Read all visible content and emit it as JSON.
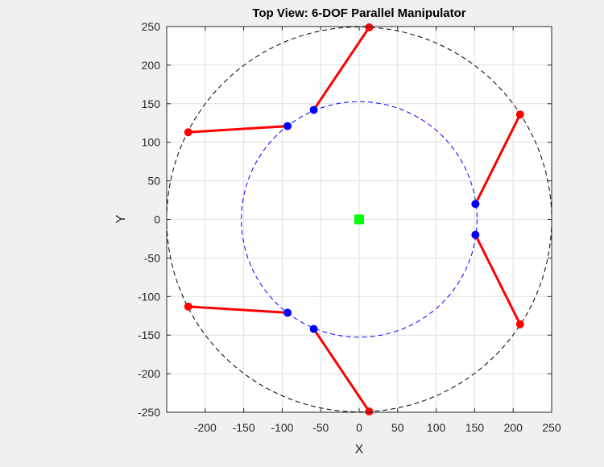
{
  "chart_data": {
    "type": "scatter",
    "title": "Top View: 6-DOF Parallel Manipulator",
    "xlabel": "X",
    "ylabel": "Y",
    "xlim": [
      -250,
      250
    ],
    "ylim": [
      -250,
      250
    ],
    "grid": true,
    "xticks": [
      -200,
      -150,
      -100,
      -50,
      0,
      50,
      100,
      150,
      200,
      250
    ],
    "yticks": [
      250,
      200,
      150,
      100,
      50,
      0,
      -50,
      -100,
      -150,
      -200,
      -250
    ],
    "circles": [
      {
        "role": "base",
        "radius": 250,
        "color": "#000000",
        "dashed": true
      },
      {
        "role": "platform",
        "radius": 153,
        "color": "#0000ff",
        "dashed": true
      }
    ],
    "center_marker": {
      "x": 0,
      "y": 0,
      "color": "#00ff00",
      "shape": "square"
    },
    "base_points": {
      "color": "#ff0000",
      "points": [
        [
          13,
          249
        ],
        [
          209,
          136
        ],
        [
          209,
          -136
        ],
        [
          13,
          -249
        ],
        [
          -222,
          -113
        ],
        [
          -222,
          113
        ]
      ]
    },
    "platform_points": {
      "color": "#0000ff",
      "points": [
        [
          -59,
          142
        ],
        [
          -93,
          121
        ],
        [
          151,
          20
        ],
        [
          151,
          -20
        ],
        [
          -59,
          -142
        ],
        [
          -93,
          -121
        ]
      ]
    },
    "legs": {
      "color": "#ff0000",
      "pairs": [
        [
          [
            13,
            249
          ],
          [
            -59,
            142
          ]
        ],
        [
          [
            -222,
            113
          ],
          [
            -93,
            121
          ]
        ],
        [
          [
            209,
            136
          ],
          [
            151,
            20
          ]
        ],
        [
          [
            209,
            -136
          ],
          [
            151,
            -20
          ]
        ],
        [
          [
            -222,
            -113
          ],
          [
            -93,
            -121
          ]
        ],
        [
          [
            13,
            -249
          ],
          [
            -59,
            -142
          ]
        ]
      ]
    }
  }
}
